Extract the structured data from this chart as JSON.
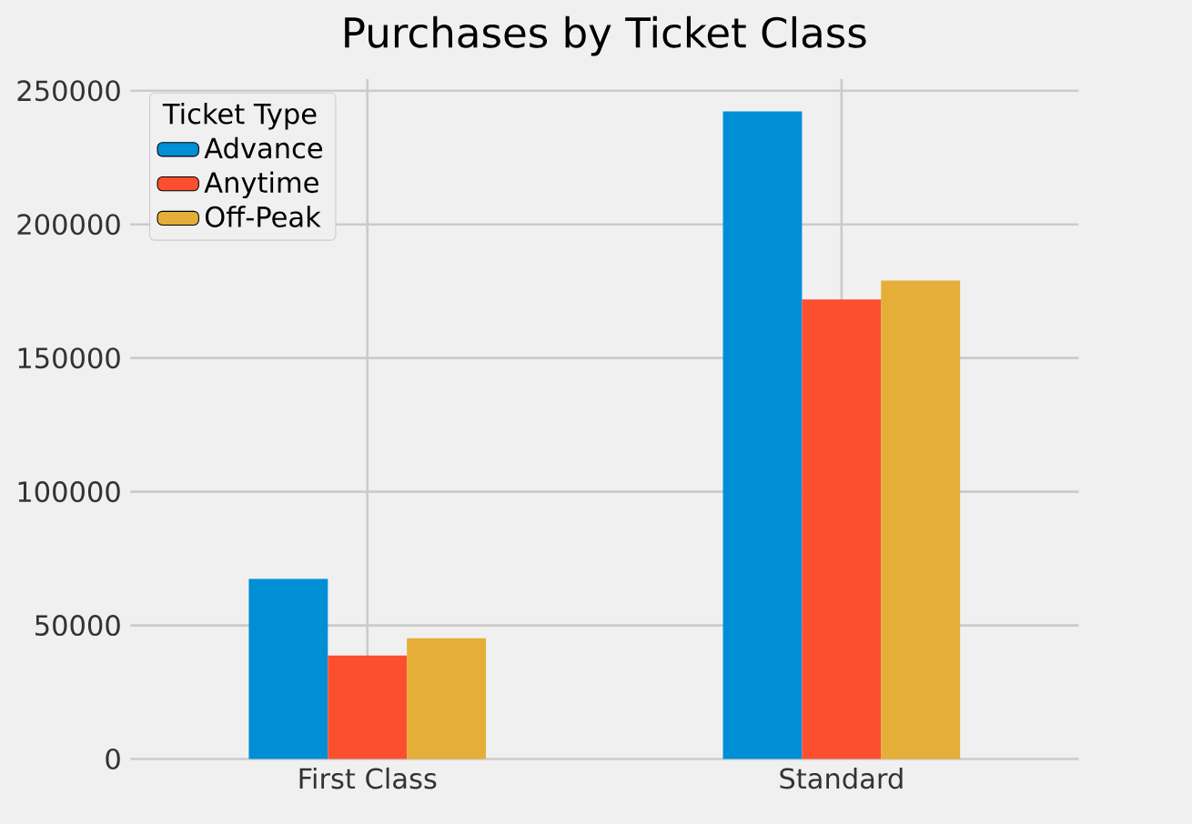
{
  "chart_data": {
    "type": "bar",
    "title": "Purchases by Ticket Class",
    "legend_title": "Ticket Type",
    "categories": [
      "First Class",
      "Standard"
    ],
    "series": [
      {
        "name": "Advance",
        "color": "#008fd5",
        "values": [
          67400,
          242300
        ]
      },
      {
        "name": "Anytime",
        "color": "#fc4f30",
        "values": [
          38700,
          171900
        ]
      },
      {
        "name": "Off-Peak",
        "color": "#e5ae38",
        "values": [
          45200,
          179000
        ]
      }
    ],
    "ylim": [
      0,
      254400
    ],
    "yticks": [
      0,
      50000,
      100000,
      150000,
      200000,
      250000
    ],
    "grid": true,
    "legend": "top left"
  }
}
